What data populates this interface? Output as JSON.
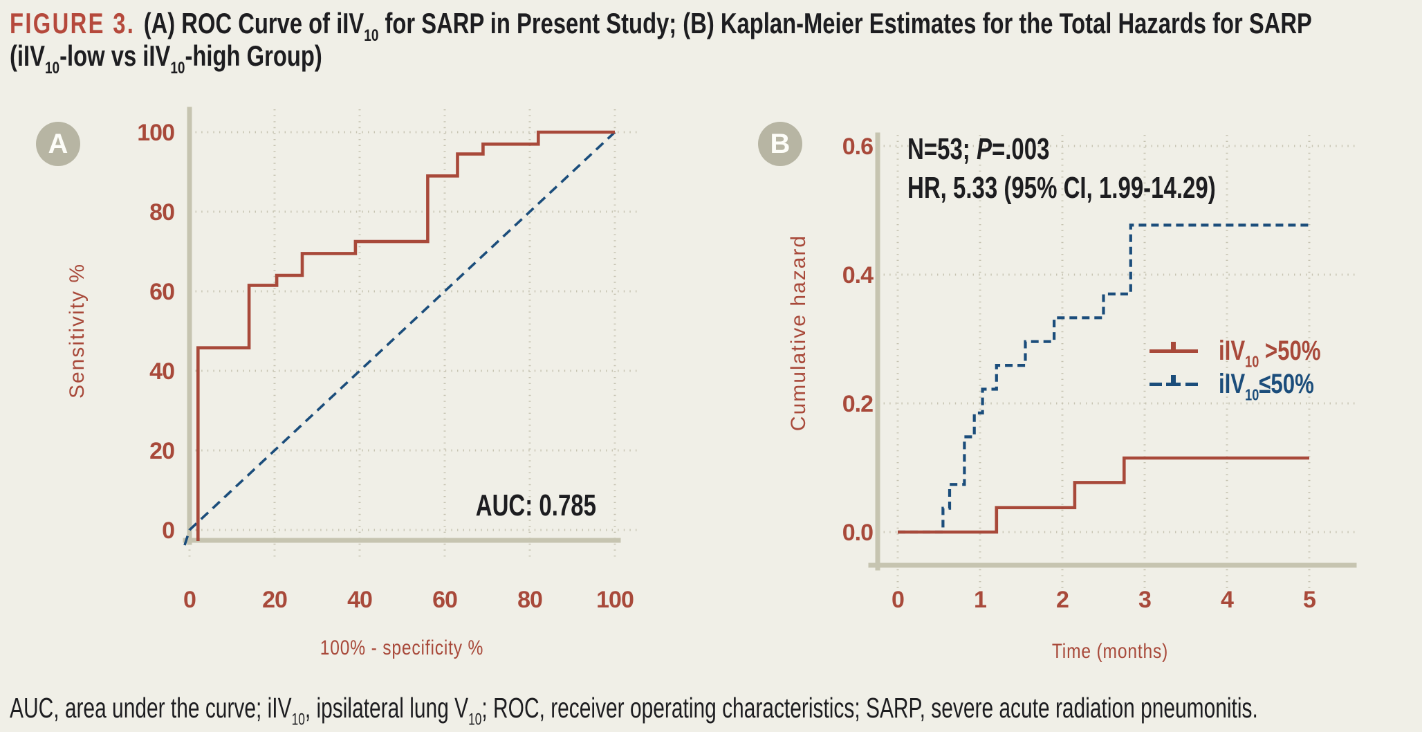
{
  "figure": {
    "label": "FIGURE 3.",
    "title_line1": [
      {
        "t": "(A) ROC Curve of iIV"
      },
      {
        "sub": "10"
      },
      {
        "t": " for SARP in Present Study; (B) Kaplan-Meier Estimates for the Total Hazards for SARP"
      }
    ],
    "title_line2": [
      {
        "t": "(iIV"
      },
      {
        "sub": "10"
      },
      {
        "t": "-low vs iIV"
      },
      {
        "sub": "10"
      },
      {
        "t": "-high Group)"
      }
    ]
  },
  "caption": [
    {
      "t": "AUC, area under the curve; iIV"
    },
    {
      "sub": "10"
    },
    {
      "t": ", ipsilateral lung V"
    },
    {
      "sub": "10"
    },
    {
      "t": "; ROC, receiver operating characteristics; SARP, severe acute radiation pneumonitis."
    }
  ],
  "colors": {
    "background": "#f0efe7",
    "accent_red": "#a8493a",
    "accent_blue": "#1b4d7b",
    "grid": "#c6c3b1",
    "axis": "#c6c4b0",
    "badge": "#b7b5a3",
    "figure_label_red": "#b5493c",
    "text_black": "#1d1d20"
  },
  "panelA": {
    "badge": "A"
  },
  "panelB": {
    "badge": "B",
    "stats_line1": [
      {
        "t": "N=53; "
      },
      {
        "i": "P"
      },
      {
        "t": "=.003"
      }
    ],
    "stats_line2": [
      {
        "t": "HR, 5.33 (95% CI, 1.99-14.29)"
      }
    ],
    "legend": [
      {
        "series": "gt50",
        "color": "#a8493a",
        "marker": "solid-line-censor-tick",
        "label": [
          {
            "t": "iIV"
          },
          {
            "sub": "10"
          },
          {
            "t": " >50%"
          }
        ]
      },
      {
        "series": "le50",
        "color": "#1b4d7b",
        "marker": "dashed-line-censor-tick",
        "label": [
          {
            "t": "iIV"
          },
          {
            "sub": "10"
          },
          {
            "t": "≤50%"
          }
        ]
      }
    ]
  },
  "chart_data": [
    {
      "type": "line",
      "subtype": "roc-step-curve",
      "panel": "A",
      "xlabel": "100% - specificity %",
      "ylabel": "Sensitivity %",
      "xlim": [
        0,
        100
      ],
      "ylim": [
        0,
        100
      ],
      "xticks": [
        0,
        20,
        40,
        60,
        80,
        100
      ],
      "yticks": [
        0,
        20,
        40,
        60,
        80,
        100
      ],
      "grid": "dotted",
      "annotations": [
        "AUC: 0.785"
      ],
      "auc": 0.785,
      "series": [
        {
          "id": "reference",
          "name": "Reference diagonal",
          "color": "#1b4d7b",
          "style": "dashed",
          "dash": "14 9",
          "width": 3.6,
          "points": [
            [
              0,
              0
            ],
            [
              100,
              100
            ]
          ]
        },
        {
          "id": "roc",
          "name": "ROC curve of iIV10 for SARP",
          "color": "#a8493a",
          "style": "solid-step",
          "width": 4.6,
          "points": [
            [
              2,
              0
            ],
            [
              2,
              45.8
            ],
            [
              14,
              45.8
            ],
            [
              14,
              61.5
            ],
            [
              20.5,
              61.5
            ],
            [
              20.5,
              64
            ],
            [
              26.5,
              64
            ],
            [
              26.5,
              69.5
            ],
            [
              39,
              69.5
            ],
            [
              39,
              72.5
            ],
            [
              56,
              72.5
            ],
            [
              56,
              89
            ],
            [
              63,
              89
            ],
            [
              63,
              94.5
            ],
            [
              69,
              94.5
            ],
            [
              69,
              97
            ],
            [
              82,
              97
            ],
            [
              82,
              100
            ],
            [
              100,
              100
            ]
          ]
        }
      ]
    },
    {
      "type": "line",
      "subtype": "kaplan-meier-cumulative-hazard",
      "panel": "B",
      "xlabel": "Time (months)",
      "ylabel": "Cumulative hazard",
      "xlim": [
        0,
        5
      ],
      "ylim": [
        0,
        0.6
      ],
      "xticks": [
        0,
        1,
        2,
        3,
        4,
        5
      ],
      "yticks": [
        0,
        0.2,
        0.4,
        0.6
      ],
      "ytick_labels": [
        "0.0",
        "0.2",
        "0.4",
        "0.6"
      ],
      "grid": "dotted",
      "n": 53,
      "p_value": ".003",
      "hazard_ratio": "5.33 (95% CI, 1.99-14.29)",
      "series": [
        {
          "id": "le50",
          "name": "iIV10 ≤50%",
          "color": "#1b4d7b",
          "style": "dashed-step",
          "dash": "11 7",
          "width": 4.2,
          "points": [
            [
              0,
              0
            ],
            [
              0.55,
              0
            ],
            [
              0.55,
              0.037
            ],
            [
              0.63,
              0.037
            ],
            [
              0.63,
              0.074
            ],
            [
              0.81,
              0.074
            ],
            [
              0.81,
              0.148
            ],
            [
              0.93,
              0.148
            ],
            [
              0.93,
              0.185
            ],
            [
              1.03,
              0.185
            ],
            [
              1.03,
              0.222
            ],
            [
              1.2,
              0.222
            ],
            [
              1.2,
              0.259
            ],
            [
              1.55,
              0.259
            ],
            [
              1.55,
              0.296
            ],
            [
              1.9,
              0.296
            ],
            [
              1.9,
              0.333
            ],
            [
              2.5,
              0.333
            ],
            [
              2.5,
              0.37
            ],
            [
              2.83,
              0.37
            ],
            [
              2.83,
              0.477
            ],
            [
              5,
              0.477
            ]
          ]
        },
        {
          "id": "gt50",
          "name": "iIV10 >50%",
          "color": "#a8493a",
          "style": "solid-step",
          "width": 4.6,
          "points": [
            [
              0,
              0
            ],
            [
              1.2,
              0
            ],
            [
              1.2,
              0.038
            ],
            [
              2.15,
              0.038
            ],
            [
              2.15,
              0.077
            ],
            [
              2.75,
              0.077
            ],
            [
              2.75,
              0.115
            ],
            [
              5,
              0.115
            ]
          ]
        }
      ]
    }
  ]
}
